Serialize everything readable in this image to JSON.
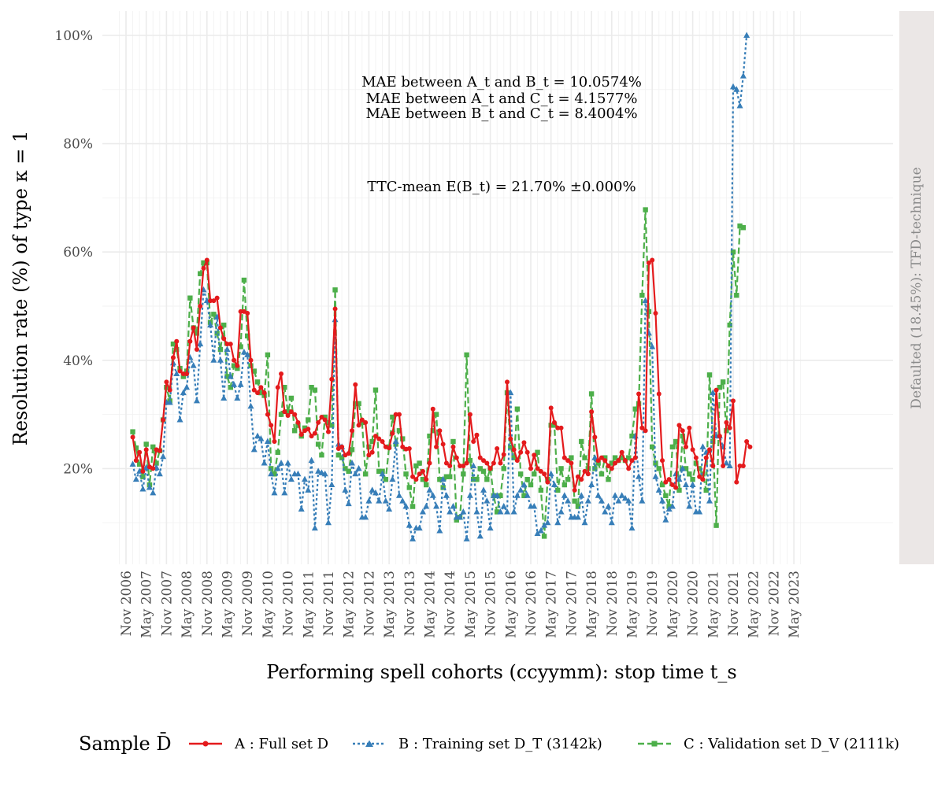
{
  "chart_data": {
    "type": "line",
    "xlabel": "Performing spell cohorts (ccyymm): stop time t_s",
    "ylabel": "Resolution rate (%) of type κ = 1",
    "facet_label": "Defaulted (18.45%): TFD-technique",
    "ylim": [
      0.05,
      1.0
    ],
    "y_ticks": [
      {
        "value": 0.2,
        "label": "20%"
      },
      {
        "value": 0.4,
        "label": "40%"
      },
      {
        "value": 0.6,
        "label": "60%"
      },
      {
        "value": 0.8,
        "label": "80%"
      },
      {
        "value": 1.0,
        "label": "100%"
      }
    ],
    "x_ticks": [
      "Nov 2006",
      "May 2007",
      "Nov 2007",
      "May 2008",
      "Nov 2008",
      "May 2009",
      "Nov 2009",
      "May 2010",
      "Nov 2010",
      "May 2011",
      "Nov 2011",
      "May 2012",
      "Nov 2012",
      "May 2013",
      "Nov 2013",
      "May 2014",
      "Nov 2014",
      "May 2015",
      "Nov 2015",
      "May 2016",
      "Nov 2016",
      "May 2017",
      "Nov 2017",
      "May 2018",
      "Nov 2018",
      "May 2019",
      "Nov 2019",
      "May 2020",
      "Nov 2020",
      "May 2021",
      "Nov 2021",
      "May 2022",
      "Nov 2022",
      "May 2023"
    ],
    "x_start": "2007-01",
    "annotations": [
      "MAE between A_t and B_t = 10.0574%",
      "MAE between A_t and C_t = 4.1577%",
      "MAE between B_t and C_t = 8.4004%",
      "TTC-mean E(B_t) = 21.70% ±0.000%"
    ],
    "grid": true,
    "legend_position": "bottom",
    "legend_title": "Sample D̄",
    "series": [
      {
        "key": "A",
        "name": "A : Full set D",
        "color": "#e41a1c",
        "values": [
          0.258,
          0.215,
          0.23,
          0.195,
          0.235,
          0.203,
          0.2,
          0.235,
          0.233,
          0.29,
          0.36,
          0.345,
          0.405,
          0.435,
          0.38,
          0.375,
          0.375,
          0.435,
          0.46,
          0.42,
          0.5,
          0.57,
          0.585,
          0.51,
          0.51,
          0.515,
          0.46,
          0.44,
          0.43,
          0.43,
          0.4,
          0.39,
          0.49,
          0.49,
          0.487,
          0.4,
          0.345,
          0.34,
          0.35,
          0.34,
          0.3,
          0.28,
          0.25,
          0.35,
          0.375,
          0.305,
          0.298,
          0.305,
          0.3,
          0.285,
          0.263,
          0.27,
          0.273,
          0.26,
          0.265,
          0.285,
          0.295,
          0.29,
          0.268,
          0.365,
          0.495,
          0.237,
          0.24,
          0.225,
          0.228,
          0.27,
          0.355,
          0.28,
          0.29,
          0.285,
          0.225,
          0.23,
          0.26,
          0.255,
          0.25,
          0.24,
          0.238,
          0.265,
          0.3,
          0.3,
          0.24,
          0.236,
          0.237,
          0.185,
          0.18,
          0.19,
          0.195,
          0.18,
          0.21,
          0.31,
          0.24,
          0.27,
          0.245,
          0.21,
          0.205,
          0.24,
          0.22,
          0.205,
          0.205,
          0.21,
          0.3,
          0.25,
          0.262,
          0.22,
          0.215,
          0.21,
          0.2,
          0.21,
          0.237,
          0.21,
          0.226,
          0.36,
          0.255,
          0.235,
          0.215,
          0.23,
          0.248,
          0.23,
          0.2,
          0.225,
          0.2,
          0.195,
          0.19,
          0.175,
          0.312,
          0.285,
          0.275,
          0.275,
          0.22,
          0.215,
          0.21,
          0.16,
          0.185,
          0.18,
          0.195,
          0.19,
          0.305,
          0.258,
          0.215,
          0.22,
          0.215,
          0.205,
          0.2,
          0.21,
          0.215,
          0.23,
          0.215,
          0.2,
          0.215,
          0.22,
          0.338,
          0.275,
          0.27,
          0.58,
          0.585,
          0.487,
          0.338,
          0.215,
          0.175,
          0.18,
          0.17,
          0.165,
          0.28,
          0.27,
          0.24,
          0.275,
          0.235,
          0.22,
          0.185,
          0.18,
          0.22,
          0.235,
          0.205,
          0.345,
          0.26,
          0.205,
          0.285,
          0.275,
          0.325,
          0.175,
          0.205,
          0.205,
          0.25,
          0.24
        ]
      },
      {
        "key": "B",
        "name": "B : Training set D_T (3142k)",
        "color": "#377eb8",
        "values": [
          0.208,
          0.18,
          0.195,
          0.162,
          0.202,
          0.165,
          0.155,
          0.202,
          0.19,
          0.222,
          0.322,
          0.322,
          0.395,
          0.375,
          0.29,
          0.34,
          0.35,
          0.405,
          0.39,
          0.325,
          0.43,
          0.53,
          0.51,
          0.465,
          0.4,
          0.48,
          0.4,
          0.33,
          0.42,
          0.37,
          0.355,
          0.33,
          0.355,
          0.415,
          0.41,
          0.315,
          0.235,
          0.26,
          0.255,
          0.21,
          0.25,
          0.19,
          0.155,
          0.2,
          0.21,
          0.155,
          0.21,
          0.18,
          0.19,
          0.19,
          0.125,
          0.18,
          0.16,
          0.215,
          0.09,
          0.195,
          0.192,
          0.19,
          0.1,
          0.17,
          0.475,
          0.245,
          0.24,
          0.16,
          0.135,
          0.21,
          0.19,
          0.2,
          0.11,
          0.11,
          0.14,
          0.16,
          0.155,
          0.14,
          0.19,
          0.14,
          0.125,
          0.18,
          0.25,
          0.15,
          0.14,
          0.13,
          0.095,
          0.07,
          0.09,
          0.09,
          0.12,
          0.13,
          0.16,
          0.15,
          0.13,
          0.085,
          0.18,
          0.15,
          0.12,
          0.13,
          0.11,
          0.11,
          0.12,
          0.07,
          0.15,
          0.205,
          0.12,
          0.075,
          0.16,
          0.14,
          0.09,
          0.15,
          0.15,
          0.12,
          0.13,
          0.12,
          0.34,
          0.12,
          0.15,
          0.16,
          0.17,
          0.15,
          0.13,
          0.13,
          0.08,
          0.085,
          0.095,
          0.1,
          0.19,
          0.17,
          0.1,
          0.12,
          0.15,
          0.14,
          0.11,
          0.11,
          0.11,
          0.15,
          0.1,
          0.14,
          0.17,
          0.22,
          0.15,
          0.14,
          0.12,
          0.13,
          0.1,
          0.15,
          0.14,
          0.15,
          0.145,
          0.14,
          0.09,
          0.26,
          0.185,
          0.14,
          0.51,
          0.45,
          0.425,
          0.185,
          0.16,
          0.14,
          0.105,
          0.125,
          0.13,
          0.19,
          0.18,
          0.2,
          0.17,
          0.13,
          0.17,
          0.12,
          0.12,
          0.24,
          0.23,
          0.14,
          0.34,
          0.26,
          0.26,
          0.24,
          0.21,
          0.205,
          0.905,
          0.9,
          0.87,
          0.925,
          1.0
        ]
      },
      {
        "key": "C",
        "name": "C : Validation set D_V (2111k)",
        "color": "#4daf4a",
        "values": [
          0.268,
          0.238,
          0.208,
          0.185,
          0.245,
          0.17,
          0.24,
          0.21,
          0.233,
          0.29,
          0.35,
          0.325,
          0.43,
          0.42,
          0.385,
          0.37,
          0.38,
          0.515,
          0.46,
          0.45,
          0.56,
          0.58,
          0.58,
          0.47,
          0.485,
          0.45,
          0.42,
          0.465,
          0.37,
          0.35,
          0.39,
          0.385,
          0.425,
          0.548,
          0.445,
          0.39,
          0.38,
          0.36,
          0.34,
          0.335,
          0.41,
          0.2,
          0.19,
          0.23,
          0.3,
          0.35,
          0.305,
          0.33,
          0.27,
          0.28,
          0.26,
          0.275,
          0.29,
          0.35,
          0.345,
          0.245,
          0.225,
          0.295,
          0.285,
          0.28,
          0.53,
          0.225,
          0.22,
          0.2,
          0.195,
          0.235,
          0.32,
          0.32,
          0.285,
          0.19,
          0.24,
          0.25,
          0.345,
          0.195,
          0.195,
          0.18,
          0.24,
          0.295,
          0.245,
          0.27,
          0.255,
          0.19,
          0.165,
          0.13,
          0.205,
          0.21,
          0.18,
          0.17,
          0.26,
          0.27,
          0.3,
          0.18,
          0.165,
          0.185,
          0.185,
          0.25,
          0.105,
          0.11,
          0.19,
          0.41,
          0.215,
          0.18,
          0.18,
          0.2,
          0.195,
          0.18,
          0.2,
          0.15,
          0.12,
          0.15,
          0.2,
          0.34,
          0.24,
          0.22,
          0.31,
          0.19,
          0.15,
          0.18,
          0.17,
          0.19,
          0.23,
          0.16,
          0.075,
          0.18,
          0.28,
          0.28,
          0.16,
          0.2,
          0.17,
          0.18,
          0.22,
          0.14,
          0.13,
          0.25,
          0.22,
          0.2,
          0.338,
          0.2,
          0.21,
          0.19,
          0.22,
          0.18,
          0.21,
          0.22,
          0.215,
          0.22,
          0.215,
          0.22,
          0.26,
          0.31,
          0.32,
          0.52,
          0.678,
          0.49,
          0.24,
          0.21,
          0.2,
          0.17,
          0.15,
          0.13,
          0.24,
          0.25,
          0.16,
          0.26,
          0.2,
          0.19,
          0.18,
          0.21,
          0.2,
          0.19,
          0.16,
          0.373,
          0.25,
          0.095,
          0.35,
          0.36,
          0.27,
          0.465,
          0.6,
          0.52,
          0.648,
          0.645
        ]
      }
    ]
  }
}
